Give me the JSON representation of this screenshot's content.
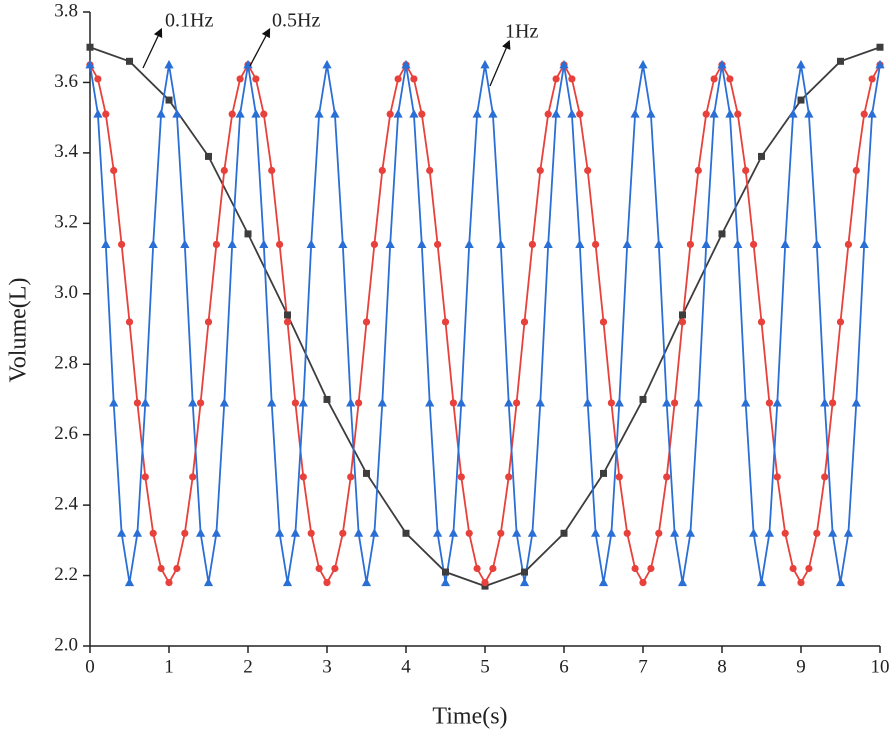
{
  "chart_data": {
    "type": "line",
    "xlabel": "Time(s)",
    "ylabel": "Volume(L)",
    "xlim": [
      0,
      10
    ],
    "xticks": [
      0,
      1,
      2,
      3,
      4,
      5,
      6,
      7,
      8,
      9,
      10
    ],
    "ylim": [
      2.0,
      3.8
    ],
    "yticks": [
      {
        "value": 2,
        "label": "2.0"
      },
      2.2,
      2.4,
      2.6,
      2.8,
      {
        "value": 3,
        "label": "3.0"
      },
      3.2,
      3.4,
      3.6,
      3.8
    ],
    "annotations": [
      "0.1Hz",
      "0.5Hz",
      "1Hz"
    ],
    "series": [
      {
        "name": "0.1Hz",
        "color": "#3d3d3d",
        "marker": "square",
        "x": [
          0,
          0.5,
          1,
          1.5,
          2,
          2.5,
          3,
          3.5,
          4,
          4.5,
          5,
          5.5,
          6,
          6.5,
          7,
          7.5,
          8,
          8.5,
          9,
          9.5,
          10
        ],
        "values": [
          3.7,
          3.66,
          3.55,
          3.39,
          3.17,
          2.94,
          2.7,
          2.49,
          2.32,
          2.21,
          2.17,
          2.21,
          2.32,
          2.49,
          2.7,
          2.94,
          3.17,
          3.39,
          3.55,
          3.66,
          3.7
        ]
      },
      {
        "name": "0.5Hz",
        "color": "#e8403a",
        "marker": "circle",
        "x": [
          0,
          0.1,
          0.2,
          0.3,
          0.4,
          0.5,
          0.6,
          0.7,
          0.8,
          0.9,
          1,
          1.1,
          1.2,
          1.3,
          1.4,
          1.5,
          1.6,
          1.7,
          1.8,
          1.9,
          2,
          2.1,
          2.2,
          2.3,
          2.4,
          2.5,
          2.6,
          2.7,
          2.8,
          2.9,
          3,
          3.1,
          3.2,
          3.3,
          3.4,
          3.5,
          3.6,
          3.7,
          3.8,
          3.9,
          4,
          4.1,
          4.2,
          4.3,
          4.4,
          4.5,
          4.6,
          4.7,
          4.8,
          4.9,
          5,
          5.1,
          5.2,
          5.3,
          5.4,
          5.5,
          5.6,
          5.7,
          5.8,
          5.9,
          6,
          6.1,
          6.2,
          6.3,
          6.4,
          6.5,
          6.6,
          6.7,
          6.8,
          6.9,
          7,
          7.1,
          7.2,
          7.3,
          7.4,
          7.5,
          7.6,
          7.7,
          7.8,
          7.9,
          8,
          8.1,
          8.2,
          8.3,
          8.4,
          8.5,
          8.6,
          8.7,
          8.8,
          8.9,
          9,
          9.1,
          9.2,
          9.3,
          9.4,
          9.5,
          9.6,
          9.7,
          9.8,
          9.9,
          10
        ],
        "values": [
          3.65,
          3.61,
          3.51,
          3.35,
          3.14,
          2.92,
          2.69,
          2.48,
          2.32,
          2.22,
          2.18,
          2.22,
          2.32,
          2.48,
          2.69,
          2.92,
          3.14,
          3.35,
          3.51,
          3.61,
          3.65,
          3.61,
          3.51,
          3.35,
          3.14,
          2.92,
          2.69,
          2.48,
          2.32,
          2.22,
          2.18,
          2.22,
          2.32,
          2.48,
          2.69,
          2.92,
          3.14,
          3.35,
          3.51,
          3.61,
          3.65,
          3.61,
          3.51,
          3.35,
          3.14,
          2.92,
          2.69,
          2.48,
          2.32,
          2.22,
          2.18,
          2.22,
          2.32,
          2.48,
          2.69,
          2.92,
          3.14,
          3.35,
          3.51,
          3.61,
          3.65,
          3.61,
          3.51,
          3.35,
          3.14,
          2.92,
          2.69,
          2.48,
          2.32,
          2.22,
          2.18,
          2.22,
          2.32,
          2.48,
          2.69,
          2.92,
          3.14,
          3.35,
          3.51,
          3.61,
          3.65,
          3.61,
          3.51,
          3.35,
          3.14,
          2.92,
          2.69,
          2.48,
          2.32,
          2.22,
          2.18,
          2.22,
          2.32,
          2.48,
          2.69,
          2.92,
          3.14,
          3.35,
          3.51,
          3.61,
          3.65
        ]
      },
      {
        "name": "1Hz",
        "color": "#2a6fd6",
        "marker": "triangle",
        "x": [
          0,
          0.1,
          0.2,
          0.3,
          0.4,
          0.5,
          0.6,
          0.7,
          0.8,
          0.9,
          1,
          1.1,
          1.2,
          1.3,
          1.4,
          1.5,
          1.6,
          1.7,
          1.8,
          1.9,
          2,
          2.1,
          2.2,
          2.3,
          2.4,
          2.5,
          2.6,
          2.7,
          2.8,
          2.9,
          3,
          3.1,
          3.2,
          3.3,
          3.4,
          3.5,
          3.6,
          3.7,
          3.8,
          3.9,
          4,
          4.1,
          4.2,
          4.3,
          4.4,
          4.5,
          4.6,
          4.7,
          4.8,
          4.9,
          5,
          5.1,
          5.2,
          5.3,
          5.4,
          5.5,
          5.6,
          5.7,
          5.8,
          5.9,
          6,
          6.1,
          6.2,
          6.3,
          6.4,
          6.5,
          6.6,
          6.7,
          6.8,
          6.9,
          7,
          7.1,
          7.2,
          7.3,
          7.4,
          7.5,
          7.6,
          7.7,
          7.8,
          7.9,
          8,
          8.1,
          8.2,
          8.3,
          8.4,
          8.5,
          8.6,
          8.7,
          8.8,
          8.9,
          9,
          9.1,
          9.2,
          9.3,
          9.4,
          9.5,
          9.6,
          9.7,
          9.8,
          9.9,
          10
        ],
        "values": [
          3.65,
          3.51,
          3.14,
          2.69,
          2.32,
          2.18,
          2.32,
          2.69,
          3.14,
          3.51,
          3.65,
          3.51,
          3.14,
          2.69,
          2.32,
          2.18,
          2.32,
          2.69,
          3.14,
          3.51,
          3.65,
          3.51,
          3.14,
          2.69,
          2.32,
          2.18,
          2.32,
          2.69,
          3.14,
          3.51,
          3.65,
          3.51,
          3.14,
          2.69,
          2.32,
          2.18,
          2.32,
          2.69,
          3.14,
          3.51,
          3.65,
          3.51,
          3.14,
          2.69,
          2.32,
          2.18,
          2.32,
          2.69,
          3.14,
          3.51,
          3.65,
          3.51,
          3.14,
          2.69,
          2.32,
          2.18,
          2.32,
          2.69,
          3.14,
          3.51,
          3.65,
          3.51,
          3.14,
          2.69,
          2.32,
          2.18,
          2.32,
          2.69,
          3.14,
          3.51,
          3.65,
          3.51,
          3.14,
          2.69,
          2.32,
          2.18,
          2.32,
          2.69,
          3.14,
          3.51,
          3.65,
          3.51,
          3.14,
          2.69,
          2.32,
          2.18,
          2.32,
          2.69,
          3.14,
          3.51,
          3.65,
          3.51,
          3.14,
          2.69,
          2.32,
          2.18,
          2.32,
          2.69,
          3.14,
          3.51,
          3.65
        ]
      }
    ]
  }
}
